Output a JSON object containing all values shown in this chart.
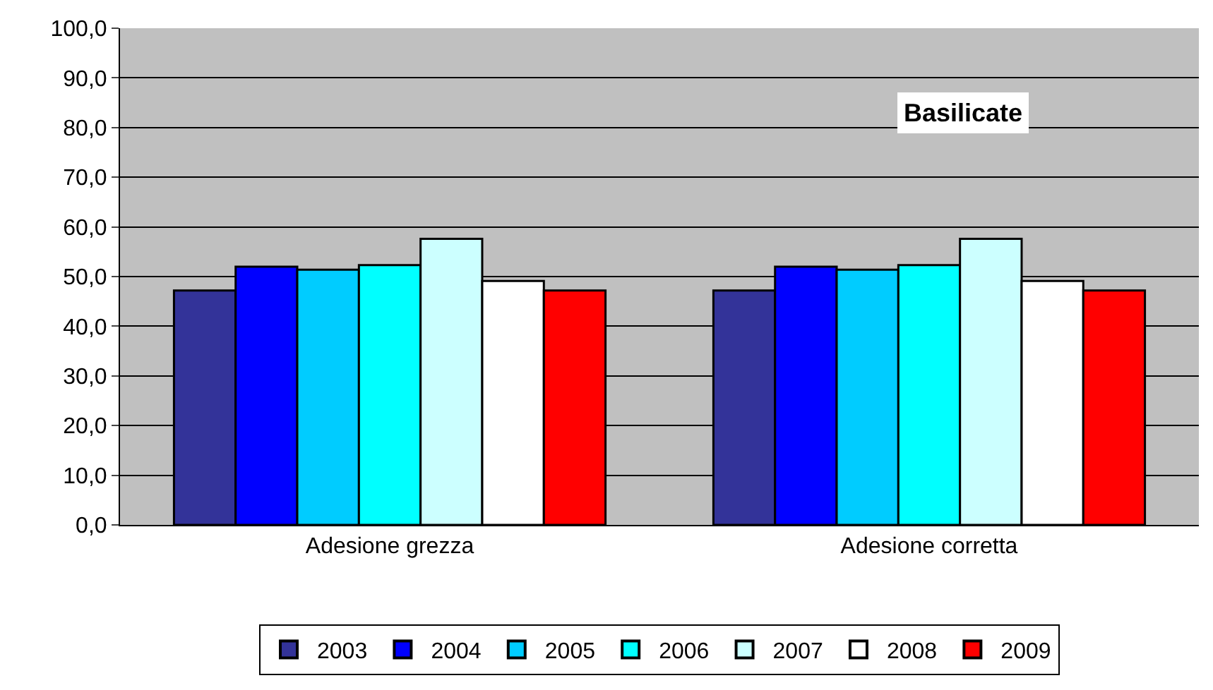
{
  "chart_data": {
    "type": "bar",
    "categories": [
      "Adesione grezza",
      "Adesione corretta"
    ],
    "series": [
      {
        "name": "2003",
        "color": "#333399",
        "values": [
          47.2,
          47.2
        ]
      },
      {
        "name": "2004",
        "color": "#0000ff",
        "values": [
          52.0,
          52.0
        ]
      },
      {
        "name": "2005",
        "color": "#00ccff",
        "values": [
          51.4,
          51.4
        ]
      },
      {
        "name": "2006",
        "color": "#00ffff",
        "values": [
          52.3,
          52.3
        ]
      },
      {
        "name": "2007",
        "color": "#ccffff",
        "values": [
          57.6,
          57.6
        ]
      },
      {
        "name": "2008",
        "color": "#ffffff",
        "values": [
          49.1,
          49.1
        ]
      },
      {
        "name": "2009",
        "color": "#ff0000",
        "values": [
          47.2,
          47.2
        ]
      }
    ],
    "annotations": [
      "Basilicate"
    ],
    "ylim": [
      0,
      100
    ],
    "yticks": [
      {
        "value": 0,
        "label": "0,0"
      },
      {
        "value": 10,
        "label": "10,0"
      },
      {
        "value": 20,
        "label": "20,0"
      },
      {
        "value": 30,
        "label": "30,0"
      },
      {
        "value": 40,
        "label": "40,0"
      },
      {
        "value": 50,
        "label": "50,0"
      },
      {
        "value": 60,
        "label": "60,0"
      },
      {
        "value": 70,
        "label": "70,0"
      },
      {
        "value": 80,
        "label": "80,0"
      },
      {
        "value": 90,
        "label": "90,0"
      },
      {
        "value": 100,
        "label": "100,0"
      }
    ],
    "grid": "y",
    "legend": "bottom"
  }
}
